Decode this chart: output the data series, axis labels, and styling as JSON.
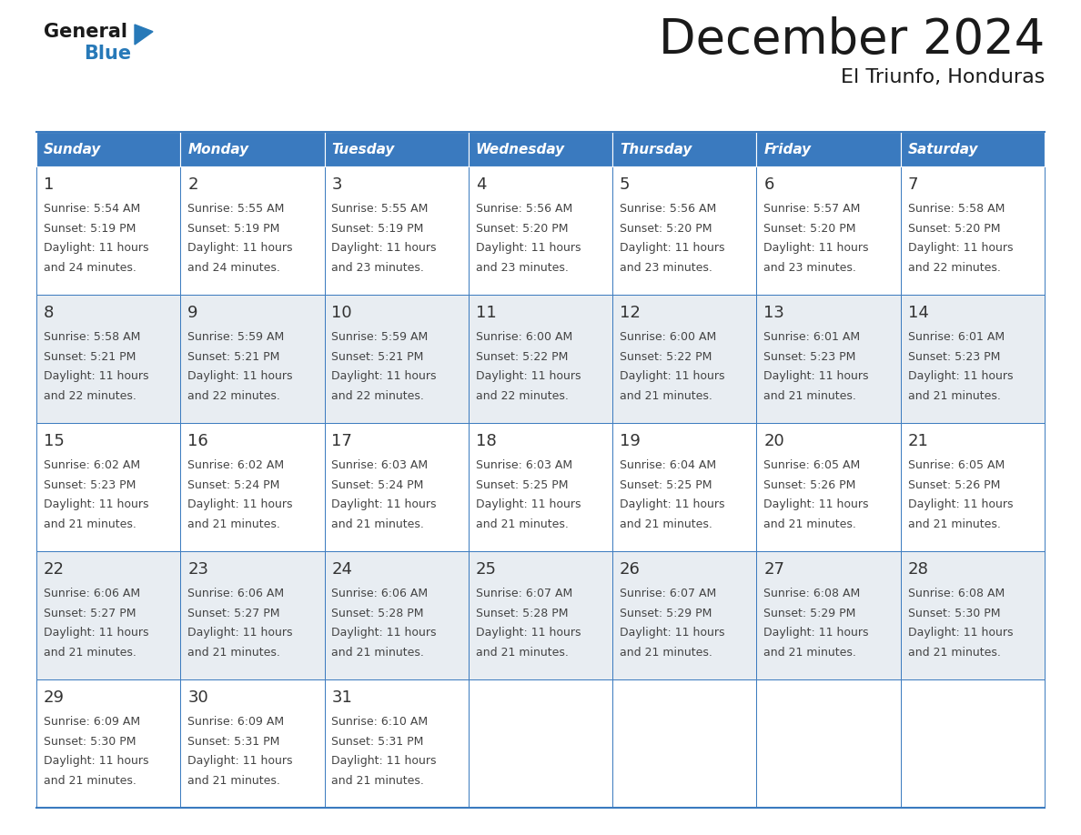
{
  "title": "December 2024",
  "subtitle": "El Triunfo, Honduras",
  "header_color": "#3a7abf",
  "header_text_color": "#ffffff",
  "row_colors": [
    "#ffffff",
    "#e8edf2"
  ],
  "border_color": "#3a7abf",
  "day_names": [
    "Sunday",
    "Monday",
    "Tuesday",
    "Wednesday",
    "Thursday",
    "Friday",
    "Saturday"
  ],
  "weeks": [
    [
      {
        "day": "1",
        "sunrise": "5:54 AM",
        "sunset": "5:19 PM",
        "daylight_h": "11 hours",
        "daylight_m": "and 24 minutes."
      },
      {
        "day": "2",
        "sunrise": "5:55 AM",
        "sunset": "5:19 PM",
        "daylight_h": "11 hours",
        "daylight_m": "and 24 minutes."
      },
      {
        "day": "3",
        "sunrise": "5:55 AM",
        "sunset": "5:19 PM",
        "daylight_h": "11 hours",
        "daylight_m": "and 23 minutes."
      },
      {
        "day": "4",
        "sunrise": "5:56 AM",
        "sunset": "5:20 PM",
        "daylight_h": "11 hours",
        "daylight_m": "and 23 minutes."
      },
      {
        "day": "5",
        "sunrise": "5:56 AM",
        "sunset": "5:20 PM",
        "daylight_h": "11 hours",
        "daylight_m": "and 23 minutes."
      },
      {
        "day": "6",
        "sunrise": "5:57 AM",
        "sunset": "5:20 PM",
        "daylight_h": "11 hours",
        "daylight_m": "and 23 minutes."
      },
      {
        "day": "7",
        "sunrise": "5:58 AM",
        "sunset": "5:20 PM",
        "daylight_h": "11 hours",
        "daylight_m": "and 22 minutes."
      }
    ],
    [
      {
        "day": "8",
        "sunrise": "5:58 AM",
        "sunset": "5:21 PM",
        "daylight_h": "11 hours",
        "daylight_m": "and 22 minutes."
      },
      {
        "day": "9",
        "sunrise": "5:59 AM",
        "sunset": "5:21 PM",
        "daylight_h": "11 hours",
        "daylight_m": "and 22 minutes."
      },
      {
        "day": "10",
        "sunrise": "5:59 AM",
        "sunset": "5:21 PM",
        "daylight_h": "11 hours",
        "daylight_m": "and 22 minutes."
      },
      {
        "day": "11",
        "sunrise": "6:00 AM",
        "sunset": "5:22 PM",
        "daylight_h": "11 hours",
        "daylight_m": "and 22 minutes."
      },
      {
        "day": "12",
        "sunrise": "6:00 AM",
        "sunset": "5:22 PM",
        "daylight_h": "11 hours",
        "daylight_m": "and 21 minutes."
      },
      {
        "day": "13",
        "sunrise": "6:01 AM",
        "sunset": "5:23 PM",
        "daylight_h": "11 hours",
        "daylight_m": "and 21 minutes."
      },
      {
        "day": "14",
        "sunrise": "6:01 AM",
        "sunset": "5:23 PM",
        "daylight_h": "11 hours",
        "daylight_m": "and 21 minutes."
      }
    ],
    [
      {
        "day": "15",
        "sunrise": "6:02 AM",
        "sunset": "5:23 PM",
        "daylight_h": "11 hours",
        "daylight_m": "and 21 minutes."
      },
      {
        "day": "16",
        "sunrise": "6:02 AM",
        "sunset": "5:24 PM",
        "daylight_h": "11 hours",
        "daylight_m": "and 21 minutes."
      },
      {
        "day": "17",
        "sunrise": "6:03 AM",
        "sunset": "5:24 PM",
        "daylight_h": "11 hours",
        "daylight_m": "and 21 minutes."
      },
      {
        "day": "18",
        "sunrise": "6:03 AM",
        "sunset": "5:25 PM",
        "daylight_h": "11 hours",
        "daylight_m": "and 21 minutes."
      },
      {
        "day": "19",
        "sunrise": "6:04 AM",
        "sunset": "5:25 PM",
        "daylight_h": "11 hours",
        "daylight_m": "and 21 minutes."
      },
      {
        "day": "20",
        "sunrise": "6:05 AM",
        "sunset": "5:26 PM",
        "daylight_h": "11 hours",
        "daylight_m": "and 21 minutes."
      },
      {
        "day": "21",
        "sunrise": "6:05 AM",
        "sunset": "5:26 PM",
        "daylight_h": "11 hours",
        "daylight_m": "and 21 minutes."
      }
    ],
    [
      {
        "day": "22",
        "sunrise": "6:06 AM",
        "sunset": "5:27 PM",
        "daylight_h": "11 hours",
        "daylight_m": "and 21 minutes."
      },
      {
        "day": "23",
        "sunrise": "6:06 AM",
        "sunset": "5:27 PM",
        "daylight_h": "11 hours",
        "daylight_m": "and 21 minutes."
      },
      {
        "day": "24",
        "sunrise": "6:06 AM",
        "sunset": "5:28 PM",
        "daylight_h": "11 hours",
        "daylight_m": "and 21 minutes."
      },
      {
        "day": "25",
        "sunrise": "6:07 AM",
        "sunset": "5:28 PM",
        "daylight_h": "11 hours",
        "daylight_m": "and 21 minutes."
      },
      {
        "day": "26",
        "sunrise": "6:07 AM",
        "sunset": "5:29 PM",
        "daylight_h": "11 hours",
        "daylight_m": "and 21 minutes."
      },
      {
        "day": "27",
        "sunrise": "6:08 AM",
        "sunset": "5:29 PM",
        "daylight_h": "11 hours",
        "daylight_m": "and 21 minutes."
      },
      {
        "day": "28",
        "sunrise": "6:08 AM",
        "sunset": "5:30 PM",
        "daylight_h": "11 hours",
        "daylight_m": "and 21 minutes."
      }
    ],
    [
      {
        "day": "29",
        "sunrise": "6:09 AM",
        "sunset": "5:30 PM",
        "daylight_h": "11 hours",
        "daylight_m": "and 21 minutes."
      },
      {
        "day": "30",
        "sunrise": "6:09 AM",
        "sunset": "5:31 PM",
        "daylight_h": "11 hours",
        "daylight_m": "and 21 minutes."
      },
      {
        "day": "31",
        "sunrise": "6:10 AM",
        "sunset": "5:31 PM",
        "daylight_h": "11 hours",
        "daylight_m": "and 21 minutes."
      },
      null,
      null,
      null,
      null
    ]
  ],
  "logo_general_color": "#1a1a1a",
  "logo_blue_color": "#2779b8",
  "logo_triangle_color": "#2779b8",
  "text_color": "#444444",
  "day_num_color": "#333333",
  "title_color": "#1a1a1a",
  "subtitle_color": "#1a1a1a"
}
